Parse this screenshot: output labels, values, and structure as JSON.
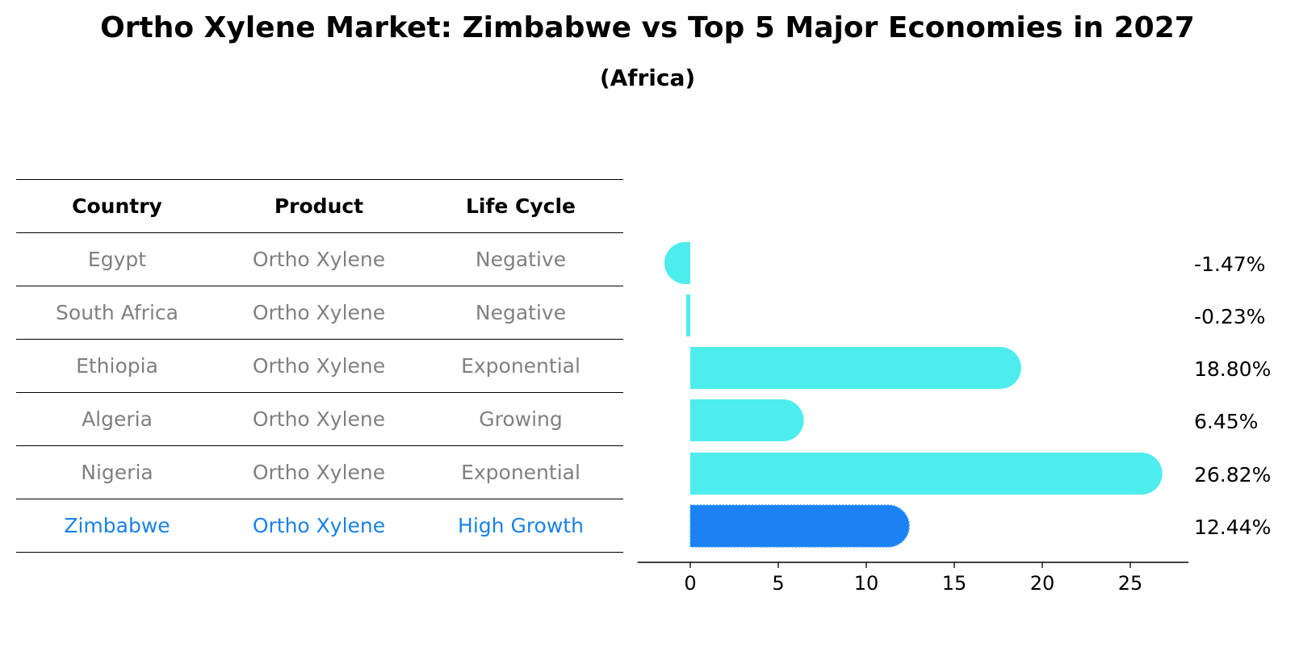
{
  "title": "Ortho Xylene Market: Zimbabwe vs Top 5 Major Economies in 2027",
  "subtitle": "(Africa)",
  "table": {
    "headers": [
      "Country",
      "Product",
      "Life Cycle"
    ],
    "rows": [
      [
        "Egypt",
        "Ortho Xylene",
        "Negative"
      ],
      [
        "South Africa",
        "Ortho Xylene",
        "Negative"
      ],
      [
        "Ethiopia",
        "Ortho Xylene",
        "Exponential"
      ],
      [
        "Algeria",
        "Ortho Xylene",
        "Growing"
      ],
      [
        "Nigeria",
        "Ortho Xylene",
        "Exponential"
      ],
      [
        "Zimbabwe",
        "Ortho Xylene",
        "High Growth"
      ]
    ]
  },
  "chart_data": {
    "type": "bar",
    "orientation": "horizontal",
    "categories": [
      "Egypt",
      "South Africa",
      "Ethiopia",
      "Algeria",
      "Nigeria",
      "Zimbabwe"
    ],
    "values": [
      -1.47,
      -0.23,
      18.8,
      6.45,
      26.82,
      12.44
    ],
    "value_labels": [
      "-1.47%",
      "-0.23%",
      "18.80%",
      "6.45%",
      "26.82%",
      "12.44%"
    ],
    "highlight": "Zimbabwe",
    "xlim": [
      -3,
      28.3
    ],
    "xticks": [
      0,
      5,
      10,
      15,
      20,
      25
    ],
    "colors": {
      "default": "#4deded",
      "highlight": "#1a82f2"
    }
  }
}
